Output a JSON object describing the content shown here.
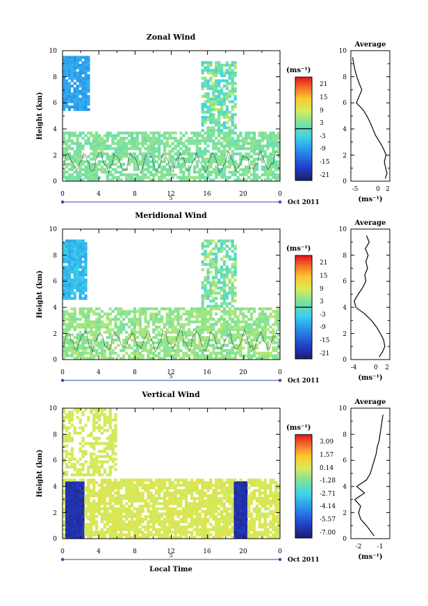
{
  "figure": {
    "x_axis_label": "Local Time",
    "date_label": "Oct 2011",
    "day_marker": "5",
    "average_title": "Average",
    "unit_label": "(ms⁻¹)"
  },
  "chart_data": [
    {
      "type": "heatmap",
      "title": "Zonal Wind",
      "ylabel": "Height (km)",
      "xlabel": "Local Time",
      "x_ticks": [
        "0",
        "4",
        "8",
        "12",
        "16",
        "20",
        "0"
      ],
      "x_range_hours": [
        0,
        24
      ],
      "y_ticks": [
        "0",
        "2",
        "4",
        "6",
        "8",
        "10"
      ],
      "ylim": [
        0,
        10
      ],
      "colorbar": {
        "unit": "(ms⁻¹)",
        "ticks": [
          "21",
          "15",
          "9",
          "3",
          "-3",
          "-9",
          "-15",
          "-21"
        ],
        "range": [
          -24,
          24
        ],
        "zero_line": true
      },
      "average_profile": {
        "title": "Average",
        "xlabel": "(ms⁻¹)",
        "x_ticks": [
          "-5",
          "0",
          "2"
        ],
        "xlim": [
          -6,
          2.5
        ],
        "heights": [
          0.2,
          0.6,
          1.0,
          1.5,
          2.0,
          2.5,
          3.0,
          3.5,
          4.0,
          4.5,
          5.0,
          5.5,
          6.0,
          6.5,
          7.0,
          7.5,
          8.0,
          8.5,
          9.0,
          9.5
        ],
        "values": [
          1.5,
          1.9,
          1.6,
          1.3,
          1.7,
          1.1,
          0.3,
          -0.6,
          -1.2,
          -1.8,
          -2.5,
          -3.4,
          -4.8,
          -4.2,
          -3.6,
          -4.2,
          -4.7,
          -5.1,
          -5.4,
          -5.6
        ]
      }
    },
    {
      "type": "heatmap",
      "title": "Meridional Wind",
      "ylabel": "Height (km)",
      "xlabel": "Local Time",
      "x_ticks": [
        "0",
        "4",
        "8",
        "12",
        "16",
        "20",
        "0"
      ],
      "x_range_hours": [
        0,
        24
      ],
      "y_ticks": [
        "0",
        "2",
        "4",
        "6",
        "8",
        "10"
      ],
      "ylim": [
        0,
        10
      ],
      "colorbar": {
        "unit": "(ms⁻¹)",
        "ticks": [
          "21",
          "15",
          "9",
          "3",
          "-3",
          "-9",
          "-15",
          "-21"
        ],
        "range": [
          -24,
          24
        ],
        "zero_line": true
      },
      "average_profile": {
        "title": "Average",
        "xlabel": "(ms⁻¹)",
        "x_ticks": [
          "-4",
          "0",
          "2"
        ],
        "xlim": [
          -4.5,
          2.5
        ],
        "heights": [
          0.2,
          0.6,
          1.0,
          1.5,
          2.0,
          2.5,
          3.0,
          3.5,
          4.0,
          4.5,
          5.0,
          5.5,
          6.0,
          6.5,
          7.0,
          7.5,
          8.0,
          8.5,
          9.0,
          9.5
        ],
        "values": [
          0.6,
          1.2,
          1.6,
          1.4,
          0.8,
          0.1,
          -0.8,
          -2.0,
          -3.6,
          -3.9,
          -3.2,
          -2.4,
          -1.8,
          -2.0,
          -1.5,
          -1.8,
          -1.4,
          -1.9,
          -1.2,
          -1.7
        ]
      }
    },
    {
      "type": "heatmap",
      "title": "Vertical Wind",
      "ylabel": "Height (km)",
      "xlabel": "Local Time",
      "x_ticks": [
        "0",
        "4",
        "8",
        "12",
        "16",
        "20",
        "0"
      ],
      "x_range_hours": [
        0,
        24
      ],
      "y_ticks": [
        "0",
        "2",
        "4",
        "6",
        "8",
        "10"
      ],
      "ylim": [
        0,
        10
      ],
      "colorbar": {
        "unit": "(ms⁻¹)",
        "ticks": [
          "3.09",
          "1.57",
          "0.14",
          "-1.28",
          "-2.71",
          "-4.14",
          "-5.57",
          "-7.00"
        ],
        "range": [
          -7.7,
          3.8
        ],
        "zero_line": false
      },
      "average_profile": {
        "title": "Average",
        "xlabel": "(ms⁻¹)",
        "x_ticks": [
          "-2",
          "-1"
        ],
        "xlim": [
          -2.4,
          -0.4
        ],
        "heights": [
          0.2,
          0.6,
          1.0,
          1.5,
          2.0,
          2.5,
          3.0,
          3.5,
          4.0,
          4.5,
          5.0,
          5.5,
          6.0,
          6.5,
          7.0,
          7.5,
          8.0,
          8.5,
          9.0,
          9.5
        ],
        "values": [
          -1.2,
          -1.4,
          -1.6,
          -1.9,
          -2.0,
          -1.9,
          -2.2,
          -1.7,
          -2.1,
          -1.6,
          -1.4,
          -1.3,
          -1.2,
          -1.1,
          -1.05,
          -0.95,
          -0.9,
          -0.85,
          -0.8,
          -0.75
        ]
      }
    }
  ]
}
